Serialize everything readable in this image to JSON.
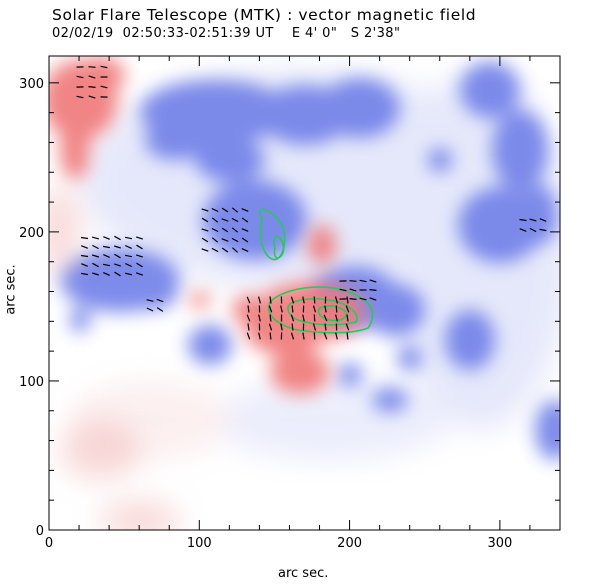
{
  "header": {
    "title": "Solar Flare Telescope (MTK) : vector magnetic field",
    "subtitle": "02/02/19  02:50:33-02:51:39 UT    E 4' 0\"   S 2'38\""
  },
  "plot": {
    "xlabel": "arc sec.",
    "ylabel": "arc sec.",
    "xlim": [
      0,
      340
    ],
    "ylim": [
      0,
      318
    ],
    "xticks": [
      0,
      100,
      200,
      300
    ],
    "yticks": [
      0,
      100,
      200,
      300
    ],
    "colors": {
      "positive": "#f07a7a",
      "negative": "#6f7fe8",
      "contour": "#22cc55",
      "vector": "#000000"
    }
  }
}
